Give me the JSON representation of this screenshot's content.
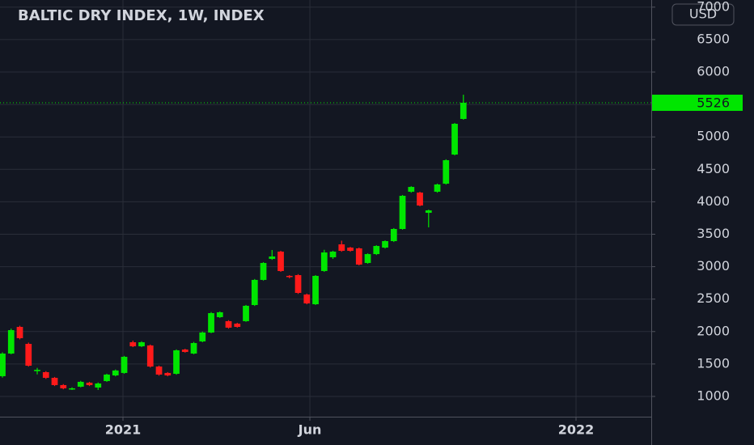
{
  "chart_data": {
    "type": "candlestick",
    "title": "BALTIC DRY INDEX, 1W, INDEX",
    "currency": "USD",
    "up_color": "#00e600",
    "down_color": "#ff1a1a",
    "grid": true,
    "open": [
      1312,
      1661,
      2072,
      1810,
      1390,
      1374,
      1287,
      1175,
      1112,
      1150,
      1212,
      1137,
      1237,
      1324,
      1362,
      1835,
      1773,
      1786,
      1461,
      1362,
      1349,
      1723,
      1661,
      1848,
      1985,
      2222,
      2160,
      2122,
      2160,
      2409,
      2796,
      3120,
      3232,
      2858,
      2870,
      2571,
      2421,
      2933,
      3145,
      3344,
      3294,
      3282,
      3057,
      3194,
      3294,
      3394,
      3581,
      4155,
      4142,
      3830,
      4155,
      4279,
      4728,
      5277
    ],
    "high": [
      1680,
      2045,
      2090,
      1830,
      1440,
      1390,
      1300,
      1190,
      1140,
      1240,
      1225,
      1215,
      1350,
      1415,
      1625,
      1860,
      1850,
      1800,
      1475,
      1375,
      1725,
      1735,
      1840,
      2000,
      2300,
      2310,
      2175,
      2135,
      2410,
      2810,
      3070,
      3257,
      3245,
      2870,
      2885,
      2585,
      2870,
      3260,
      3245,
      3400,
      3305,
      3295,
      3205,
      3330,
      3405,
      3595,
      4105,
      4240,
      4155,
      3880,
      4280,
      4655,
      5215,
      5650
    ],
    "low": [
      1290,
      1650,
      1880,
      1460,
      1340,
      1270,
      1160,
      1110,
      1100,
      1140,
      1160,
      1100,
      1225,
      1310,
      1350,
      1760,
      1760,
      1445,
      1320,
      1310,
      1335,
      1675,
      1650,
      1835,
      1975,
      2210,
      2045,
      2060,
      2150,
      2395,
      2785,
      3105,
      2920,
      2820,
      2580,
      2420,
      2410,
      2920,
      3120,
      3230,
      3230,
      3020,
      3045,
      3180,
      3280,
      3380,
      3570,
      4140,
      3930,
      3606,
      4140,
      4265,
      4715,
      5265
    ],
    "close": [
      1661,
      2022,
      1898,
      1474,
      1410,
      1287,
      1175,
      1125,
      1125,
      1225,
      1175,
      1200,
      1337,
      1400,
      1611,
      1773,
      1835,
      1461,
      1337,
      1324,
      1711,
      1686,
      1823,
      1985,
      2284,
      2297,
      2060,
      2072,
      2397,
      2796,
      3057,
      3157,
      2933,
      2845,
      2596,
      2434,
      2858,
      3219,
      3232,
      3244,
      3244,
      3032,
      3194,
      3319,
      3394,
      3581,
      4092,
      4229,
      3943,
      3868,
      4267,
      4641,
      5202,
      5526
    ],
    "xlim": [
      -0.28,
      74.6
    ],
    "xticks": [
      {
        "value": 13.86,
        "label": "2021"
      },
      {
        "value": 35.35,
        "label": "Jun"
      },
      {
        "value": 65.95,
        "label": "2022"
      }
    ],
    "ylim": [
      688,
      7110
    ],
    "yticks": [
      1000,
      1500,
      2000,
      2500,
      3000,
      3500,
      4000,
      4500,
      5000,
      5500,
      6000,
      6500,
      7000
    ]
  }
}
